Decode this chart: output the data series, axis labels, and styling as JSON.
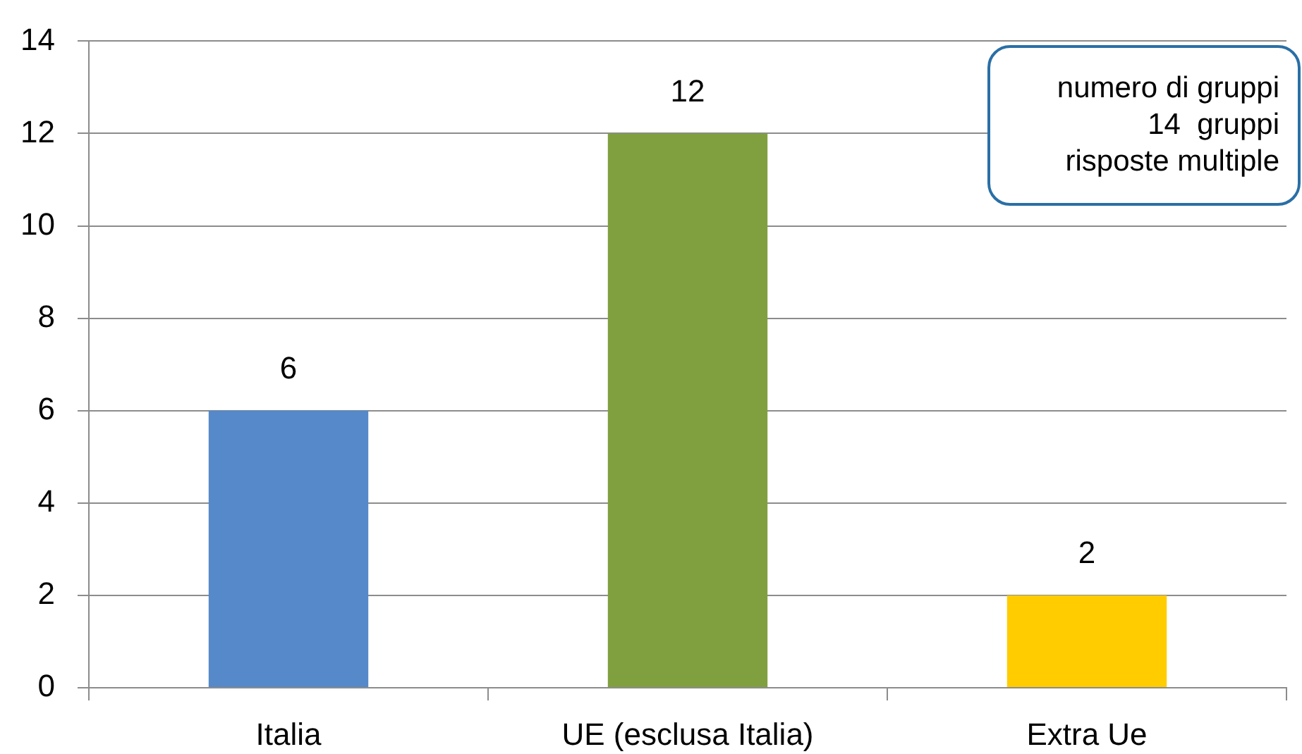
{
  "chart_data": {
    "type": "bar",
    "categories": [
      "Italia",
      "UE (esclusa Italia)",
      "Extra Ue"
    ],
    "values": [
      6,
      12,
      2
    ],
    "colors": [
      "#5589c9",
      "#80a040",
      "#ffcc00"
    ],
    "ylim": [
      0,
      14
    ],
    "yticks": [
      0,
      2,
      4,
      6,
      8,
      10,
      12,
      14
    ],
    "grid": "y",
    "data_labels": true,
    "annotations": [
      "numero di gruppi\n14  gruppi\nrisposte multiple"
    ]
  }
}
